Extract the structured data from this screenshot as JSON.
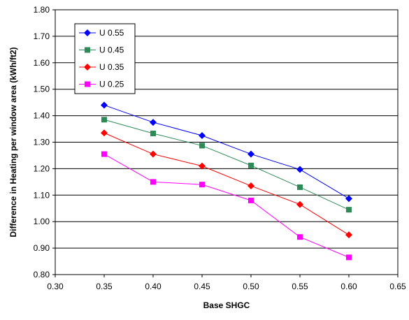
{
  "chart_data": {
    "type": "line",
    "xlabel": "Base SHGC",
    "ylabel": "Difference in Heating per window area  (kWh/ft2)",
    "xlim": [
      0.3,
      0.65
    ],
    "ylim": [
      0.8,
      1.8
    ],
    "x_ticks": [
      "0.30",
      "0.35",
      "0.40",
      "0.45",
      "0.50",
      "0.55",
      "0.60",
      "0.65"
    ],
    "y_ticks": [
      "0.80",
      "0.90",
      "1.00",
      "1.10",
      "1.20",
      "1.30",
      "1.40",
      "1.50",
      "1.60",
      "1.70",
      "1.80"
    ],
    "grid": "horizontal",
    "legend_position": "top-left",
    "x": [
      0.35,
      0.4,
      0.45,
      0.5,
      0.55,
      0.6
    ],
    "series": [
      {
        "name": "U 0.55",
        "color": "#0000ff",
        "marker": "diamond",
        "values": [
          1.44,
          1.375,
          1.325,
          1.255,
          1.197,
          1.087
        ]
      },
      {
        "name": "U 0.45",
        "color": "#2e8b57",
        "marker": "square",
        "values": [
          1.385,
          1.333,
          1.287,
          1.212,
          1.13,
          1.045
        ]
      },
      {
        "name": "U 0.35",
        "color": "#ff0000",
        "marker": "diamond",
        "values": [
          1.335,
          1.255,
          1.21,
          1.135,
          1.065,
          0.95
        ]
      },
      {
        "name": "U 0.25",
        "color": "#ff00ff",
        "marker": "square",
        "values": [
          1.255,
          1.15,
          1.14,
          1.08,
          0.942,
          0.865
        ]
      }
    ]
  }
}
